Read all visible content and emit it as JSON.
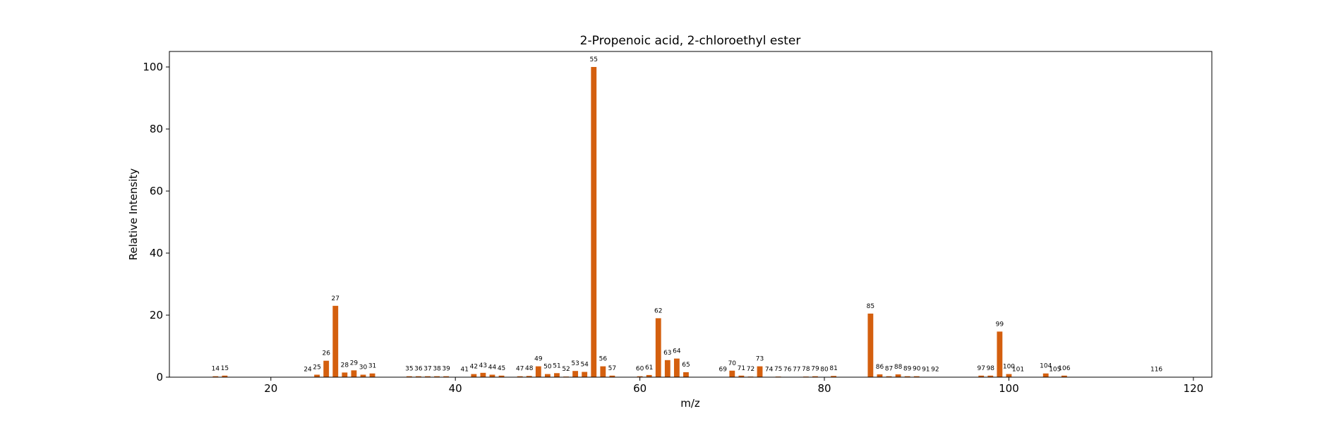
{
  "chart_data": {
    "type": "bar",
    "title": "2-Propenoic acid, 2-chloroethyl ester",
    "xlabel": "m/z",
    "ylabel": "Relative Intensity",
    "xlim": [
      9,
      122
    ],
    "ylim": [
      0,
      105
    ],
    "xticks": [
      20,
      40,
      60,
      80,
      100,
      120
    ],
    "yticks": [
      0,
      20,
      40,
      60,
      80,
      100
    ],
    "grid": false,
    "bar_color": "#d45f0e",
    "x": [
      14,
      15,
      24,
      25,
      26,
      27,
      28,
      29,
      30,
      31,
      35,
      36,
      37,
      38,
      39,
      41,
      42,
      43,
      44,
      45,
      47,
      48,
      49,
      50,
      51,
      52,
      53,
      54,
      55,
      56,
      57,
      60,
      61,
      62,
      63,
      64,
      65,
      69,
      70,
      71,
      72,
      73,
      74,
      75,
      76,
      77,
      78,
      79,
      80,
      81,
      85,
      86,
      87,
      88,
      89,
      90,
      91,
      92,
      97,
      98,
      99,
      100,
      101,
      104,
      105,
      106,
      116
    ],
    "values": [
      0.3,
      0.5,
      0.1,
      0.8,
      5.3,
      23.0,
      1.5,
      2.2,
      0.8,
      1.2,
      0.3,
      0.3,
      0.3,
      0.3,
      0.3,
      0.1,
      1.0,
      1.4,
      0.8,
      0.5,
      0.3,
      0.4,
      3.5,
      1.0,
      1.3,
      0.2,
      2.0,
      1.7,
      100.0,
      3.5,
      0.5,
      0.3,
      0.7,
      19.0,
      5.5,
      6.0,
      1.6,
      0.1,
      2.1,
      0.5,
      0.2,
      3.5,
      0.1,
      0.2,
      0.1,
      0.1,
      0.2,
      0.3,
      0.1,
      0.4,
      20.5,
      0.9,
      0.3,
      0.9,
      0.3,
      0.3,
      0.1,
      0.1,
      0.5,
      0.5,
      14.7,
      1.0,
      0.1,
      1.2,
      0.1,
      0.5,
      0.1
    ]
  }
}
